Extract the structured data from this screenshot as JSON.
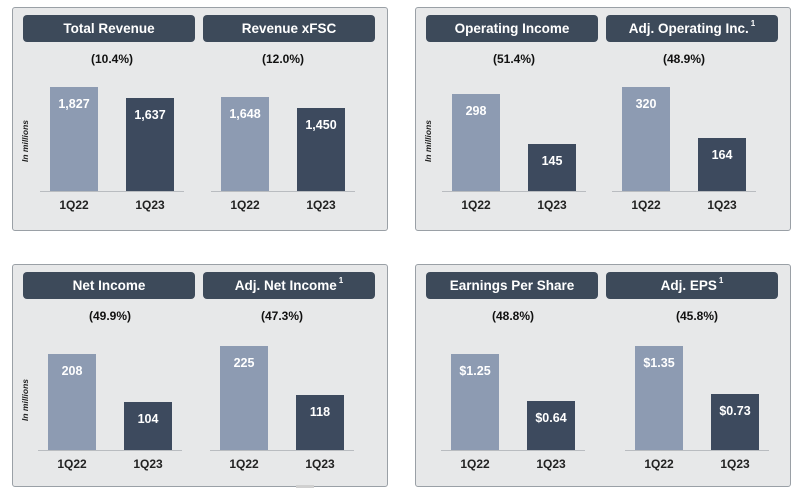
{
  "panels": [
    {
      "unit_label": "In millions",
      "charts": [
        {
          "title": "Total Revenue",
          "footnote": "",
          "change": "(10.4%)",
          "categories": [
            "1Q22",
            "1Q23"
          ],
          "value_labels": [
            "1,827",
            "1,637"
          ]
        },
        {
          "title": "Revenue xFSC",
          "footnote": "",
          "change": "(12.0%)",
          "categories": [
            "1Q22",
            "1Q23"
          ],
          "value_labels": [
            "1,648",
            "1,450"
          ]
        }
      ]
    },
    {
      "unit_label": "In millions",
      "charts": [
        {
          "title": "Operating Income",
          "footnote": "",
          "change": "(51.4%)",
          "categories": [
            "1Q22",
            "1Q23"
          ],
          "value_labels": [
            "298",
            "145"
          ]
        },
        {
          "title": "Adj. Operating Inc.",
          "footnote": "1",
          "change": "(48.9%)",
          "categories": [
            "1Q22",
            "1Q23"
          ],
          "value_labels": [
            "320",
            "164"
          ]
        }
      ]
    },
    {
      "unit_label": "In millions",
      "charts": [
        {
          "title": "Net Income",
          "footnote": "",
          "change": "(49.9%)",
          "categories": [
            "1Q22",
            "1Q23"
          ],
          "value_labels": [
            "208",
            "104"
          ]
        },
        {
          "title": "Adj. Net Income",
          "footnote": "1",
          "change": "(47.3%)",
          "categories": [
            "1Q22",
            "1Q23"
          ],
          "value_labels": [
            "225",
            "118"
          ]
        }
      ]
    },
    {
      "unit_label": "",
      "charts": [
        {
          "title": "Earnings Per Share",
          "footnote": "",
          "change": "(48.8%)",
          "categories": [
            "1Q22",
            "1Q23"
          ],
          "value_labels": [
            "$1.25",
            "$0.64"
          ]
        },
        {
          "title": "Adj. EPS",
          "footnote": "1",
          "change": "(45.8%)",
          "categories": [
            "1Q22",
            "1Q23"
          ],
          "value_labels": [
            "$1.35",
            "$0.73"
          ]
        }
      ]
    }
  ],
  "colors": {
    "prior_year": "#8d9bb2",
    "current_year": "#3d4a5e",
    "header": "#3d4a5a",
    "panel": "#e7e8e9"
  },
  "chart_data": [
    {
      "type": "bar",
      "title": "Total Revenue",
      "categories": [
        "1Q22",
        "1Q23"
      ],
      "values": [
        1827,
        1637
      ],
      "ylabel": "In millions"
    },
    {
      "type": "bar",
      "title": "Revenue xFSC",
      "categories": [
        "1Q22",
        "1Q23"
      ],
      "values": [
        1648,
        1450
      ],
      "ylabel": "In millions"
    },
    {
      "type": "bar",
      "title": "Operating Income",
      "categories": [
        "1Q22",
        "1Q23"
      ],
      "values": [
        298,
        145
      ],
      "ylabel": "In millions"
    },
    {
      "type": "bar",
      "title": "Adj. Operating Inc.",
      "categories": [
        "1Q22",
        "1Q23"
      ],
      "values": [
        320,
        164
      ],
      "ylabel": "In millions"
    },
    {
      "type": "bar",
      "title": "Net Income",
      "categories": [
        "1Q22",
        "1Q23"
      ],
      "values": [
        208,
        104
      ],
      "ylabel": "In millions"
    },
    {
      "type": "bar",
      "title": "Adj. Net Income",
      "categories": [
        "1Q22",
        "1Q23"
      ],
      "values": [
        225,
        118
      ],
      "ylabel": "In millions"
    },
    {
      "type": "bar",
      "title": "Earnings Per Share",
      "categories": [
        "1Q22",
        "1Q23"
      ],
      "values": [
        1.25,
        0.64
      ],
      "ylabel": ""
    },
    {
      "type": "bar",
      "title": "Adj. EPS",
      "categories": [
        "1Q22",
        "1Q23"
      ],
      "values": [
        1.35,
        0.73
      ],
      "ylabel": ""
    }
  ]
}
